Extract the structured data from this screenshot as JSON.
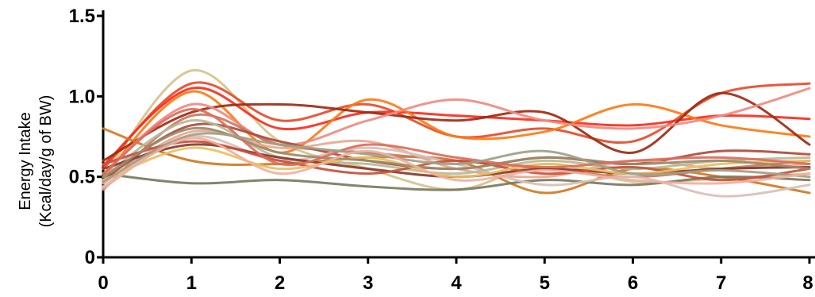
{
  "chart_data": {
    "type": "line",
    "ylabel_line1": "Energy Intake",
    "ylabel_line2": "(Kcal/day/g of BW)",
    "xlim": [
      0,
      8
    ],
    "ylim": [
      0,
      1.5
    ],
    "x_ticks": [
      0,
      1,
      2,
      3,
      4,
      5,
      6,
      7,
      8
    ],
    "x_tick_labels": [
      "0",
      "1",
      "2",
      "3",
      "4",
      "5",
      "6",
      "7",
      "8"
    ],
    "y_ticks": [
      0,
      0.5,
      1.0,
      1.5
    ],
    "y_tick_labels": [
      "0",
      "0.5",
      "1.0",
      "1.5"
    ],
    "grid": false,
    "legend": "none",
    "x": [
      0,
      1,
      2,
      3,
      4,
      5,
      6,
      7,
      8
    ],
    "series": [
      {
        "color": "#d4c48a",
        "values": [
          0.5,
          1.16,
          0.72,
          0.55,
          0.42,
          0.58,
          0.47,
          0.49,
          0.52
        ]
      },
      {
        "color": "#e84a2a",
        "values": [
          0.55,
          1.08,
          0.85,
          0.95,
          0.75,
          0.8,
          0.72,
          1.02,
          1.08
        ]
      },
      {
        "color": "#ff2a1a",
        "values": [
          0.57,
          1.05,
          0.8,
          0.9,
          0.88,
          0.85,
          0.82,
          0.88,
          0.86
        ]
      },
      {
        "color": "#ff7a10",
        "values": [
          0.5,
          1.03,
          0.65,
          0.98,
          0.75,
          0.78,
          0.95,
          0.82,
          0.75
        ]
      },
      {
        "color": "#a02a10",
        "values": [
          0.6,
          0.9,
          0.95,
          0.9,
          0.85,
          0.9,
          0.65,
          1.02,
          0.7
        ]
      },
      {
        "color": "#f08a80",
        "values": [
          0.52,
          0.95,
          0.7,
          0.85,
          0.98,
          0.85,
          0.8,
          0.88,
          1.05
        ]
      },
      {
        "color": "#d07a20",
        "values": [
          0.8,
          0.6,
          0.58,
          0.62,
          0.6,
          0.4,
          0.55,
          0.5,
          0.4
        ]
      },
      {
        "color": "#7a7a60",
        "values": [
          0.52,
          0.46,
          0.48,
          0.44,
          0.42,
          0.48,
          0.45,
          0.5,
          0.48
        ]
      },
      {
        "color": "#c87a60",
        "values": [
          0.42,
          0.88,
          0.7,
          0.65,
          0.6,
          0.55,
          0.5,
          0.55,
          0.6
        ]
      },
      {
        "color": "#b04a3a",
        "values": [
          0.48,
          0.82,
          0.72,
          0.6,
          0.55,
          0.62,
          0.58,
          0.66,
          0.64
        ]
      },
      {
        "color": "#e8a890",
        "values": [
          0.46,
          0.78,
          0.68,
          0.72,
          0.55,
          0.5,
          0.6,
          0.55,
          0.58
        ]
      },
      {
        "color": "#d8c0b8",
        "values": [
          0.44,
          0.75,
          0.6,
          0.68,
          0.58,
          0.45,
          0.5,
          0.38,
          0.45
        ]
      },
      {
        "color": "#b8b89a",
        "values": [
          0.5,
          0.85,
          0.62,
          0.58,
          0.52,
          0.6,
          0.55,
          0.6,
          0.62
        ]
      },
      {
        "color": "#8a3a2a",
        "values": [
          0.55,
          0.7,
          0.62,
          0.55,
          0.5,
          0.55,
          0.52,
          0.55,
          0.56
        ]
      },
      {
        "color": "#c8503a",
        "values": [
          0.58,
          0.72,
          0.6,
          0.52,
          0.6,
          0.52,
          0.56,
          0.48,
          0.55
        ]
      },
      {
        "color": "#e8c060",
        "values": [
          0.48,
          0.68,
          0.55,
          0.62,
          0.5,
          0.58,
          0.52,
          0.58,
          0.6
        ]
      },
      {
        "color": "#9a8a6a",
        "values": [
          0.5,
          0.8,
          0.65,
          0.6,
          0.55,
          0.62,
          0.58,
          0.6,
          0.55
        ]
      },
      {
        "color": "#e06a5a",
        "values": [
          0.52,
          0.92,
          0.58,
          0.7,
          0.62,
          0.56,
          0.6,
          0.62,
          0.58
        ]
      },
      {
        "color": "#a0a088",
        "values": [
          0.47,
          0.76,
          0.7,
          0.64,
          0.58,
          0.66,
          0.52,
          0.54,
          0.5
        ]
      },
      {
        "color": "#f0b0a0",
        "values": [
          0.43,
          0.74,
          0.52,
          0.66,
          0.48,
          0.54,
          0.48,
          0.46,
          0.52
        ]
      }
    ]
  }
}
